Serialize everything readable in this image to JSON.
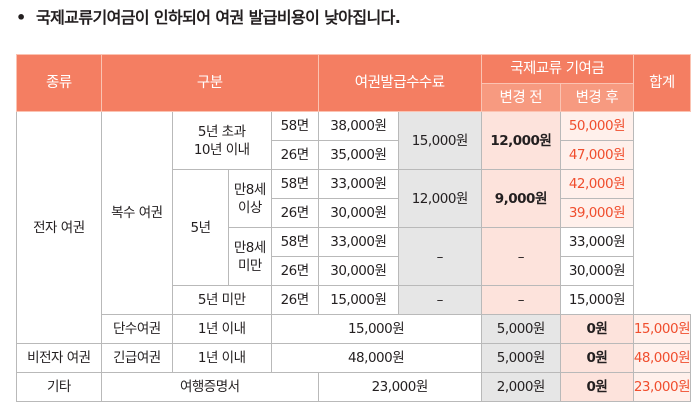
{
  "title": "국제교류기여금이 인하되어 여권 발급비용이 낮아집니다.",
  "bullet": "•",
  "header": {
    "type": "종류",
    "category": "구분",
    "issue_fee": "여권발급수수료",
    "contribution": "국제교류 기여금",
    "before": "변경 전",
    "after": "변경 후",
    "total": "합계"
  },
  "cells": {
    "electronic": "전자 여권",
    "multi": "복수 여권",
    "over5": "5년 초과\n10년 이내",
    "five_years": "5년",
    "age8_over": "만8세\n이상",
    "age8_under": "만8세\n미만",
    "under5": "5년 미만",
    "single": "단수여권",
    "within1": "1년 이내",
    "non_electronic": "비전자 여권",
    "emergency": "긴급여권",
    "other": "기타",
    "travel_cert": "여행증명서",
    "p58": "58면",
    "p26": "26면",
    "dash": "–"
  },
  "fees": {
    "r1": "38,000원",
    "r2": "35,000원",
    "r3": "33,000원",
    "r4": "30,000원",
    "r5": "33,000원",
    "r6": "30,000원",
    "r7": "15,000원",
    "single": "15,000원",
    "emergency": "48,000원",
    "travel": "23,000원"
  },
  "contribution": {
    "over5_before": "15,000원",
    "over5_after": "12,000원",
    "age8_before": "12,000원",
    "age8_after": "9,000원",
    "single_before": "5,000원",
    "single_after": "0원",
    "emergency_before": "5,000원",
    "emergency_after": "0원",
    "travel_before": "2,000원",
    "travel_after": "0원"
  },
  "totals": {
    "r1": "50,000원",
    "r2": "47,000원",
    "r3": "42,000원",
    "r4": "39,000원",
    "r5": "33,000원",
    "r6": "30,000원",
    "r7": "15,000원",
    "single": "15,000원",
    "emergency": "48,000원",
    "travel": "23,000원"
  }
}
